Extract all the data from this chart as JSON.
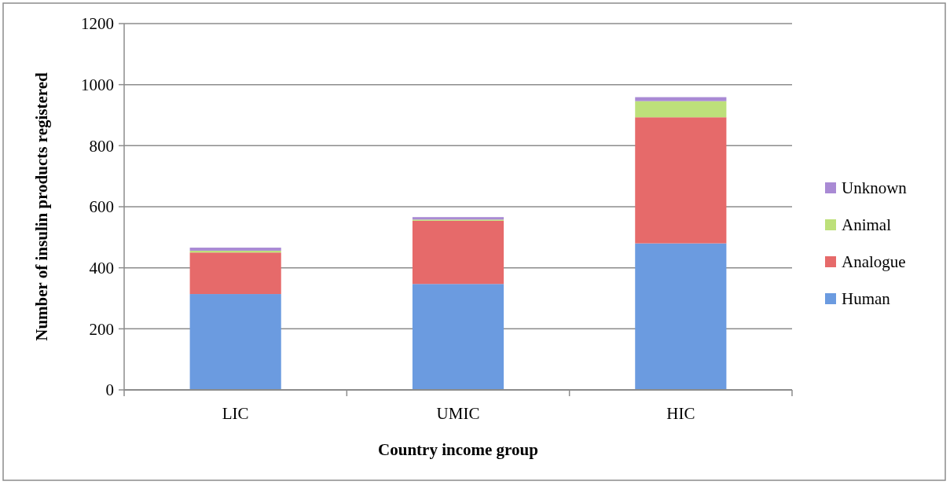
{
  "chart_data": {
    "type": "bar",
    "stacked": true,
    "xlabel": "Country income group",
    "ylabel": "Number of insulin products registered",
    "categories": [
      "LIC",
      "UMIC",
      "HIC"
    ],
    "series": [
      {
        "name": "Human",
        "color": "#6b9be0",
        "values": [
          314,
          347,
          480
        ]
      },
      {
        "name": "Analogue",
        "color": "#e66a6a",
        "values": [
          136,
          207,
          413
        ]
      },
      {
        "name": "Animal",
        "color": "#bde07a",
        "values": [
          6,
          4,
          53
        ]
      },
      {
        "name": "Unknown",
        "color": "#a98ad4",
        "values": [
          10,
          8,
          13
        ]
      }
    ],
    "ylim": [
      0,
      1200
    ],
    "yticks": [
      0,
      200,
      400,
      600,
      800,
      1000,
      1200
    ],
    "grid": "y",
    "legend": "right"
  }
}
